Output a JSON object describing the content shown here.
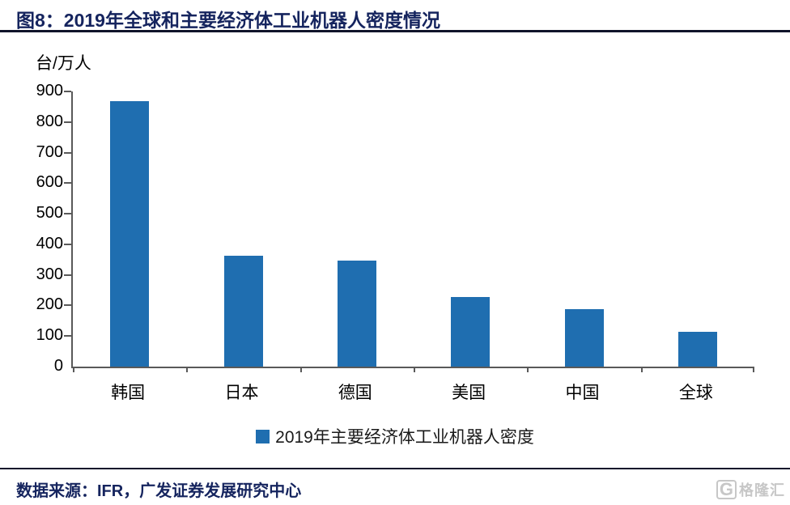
{
  "figure": {
    "label": "图8：",
    "title": "2019年全球和主要经济体工业机器人密度情况"
  },
  "chart_data": {
    "type": "bar",
    "title": "2019年全球和主要经济体工业机器人密度情况",
    "unit_label": "台/万人",
    "categories": [
      "韩国",
      "日本",
      "德国",
      "美国",
      "中国",
      "全球"
    ],
    "values": [
      868,
      364,
      346,
      228,
      187,
      113
    ],
    "series_name": "2019年主要经济体工业机器人密度",
    "xlabel": "",
    "ylabel": "台/万人",
    "ylim": [
      0,
      900
    ],
    "ytick_step": 100,
    "grid": false,
    "legend_position": "bottom",
    "bar_color": "#1F6EB0"
  },
  "footer": {
    "source": "数据来源：IFR，广发证券发展研究中心"
  },
  "watermark": {
    "icon": "G",
    "text": "格隆汇"
  },
  "colors": {
    "accent_blue": "#1F6EB0",
    "title_navy": "#15245E",
    "rule_dark": "#10142A",
    "axis_gray": "#595959",
    "watermark_gray": "#C7C7C7"
  }
}
